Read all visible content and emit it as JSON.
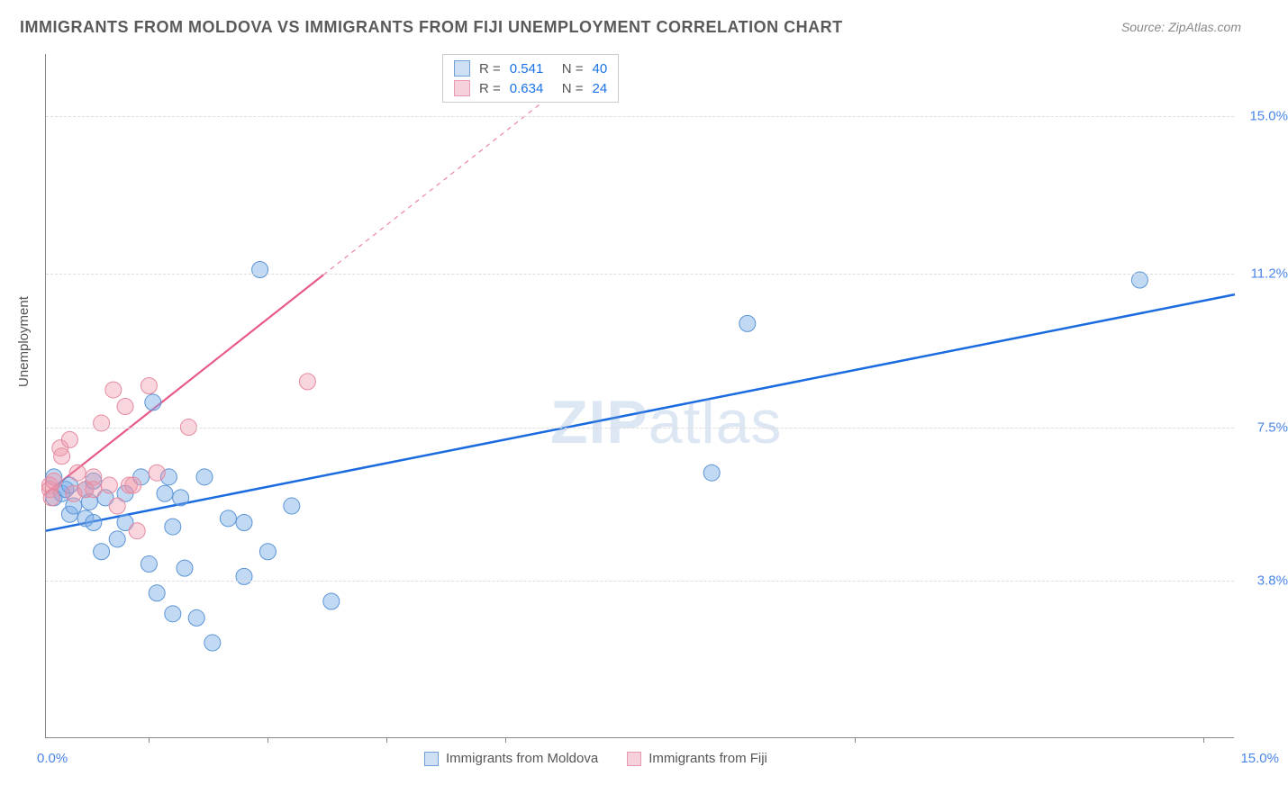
{
  "title": "IMMIGRANTS FROM MOLDOVA VS IMMIGRANTS FROM FIJI UNEMPLOYMENT CORRELATION CHART",
  "source": "Source: ZipAtlas.com",
  "y_axis_label": "Unemployment",
  "watermark_bold": "ZIP",
  "watermark_light": "atlas",
  "chart": {
    "type": "scatter",
    "background_color": "#ffffff",
    "grid_color": "#dddddd",
    "axis_color": "#888888",
    "xlim": [
      0,
      15
    ],
    "ylim": [
      0,
      16.5
    ],
    "x_min_label": "0.0%",
    "x_max_label": "15.0%",
    "y_ticks": [
      {
        "value": 3.8,
        "label": "3.8%"
      },
      {
        "value": 7.5,
        "label": "7.5%"
      },
      {
        "value": 11.2,
        "label": "11.2%"
      },
      {
        "value": 15.0,
        "label": "15.0%"
      }
    ],
    "x_tick_positions": [
      1.3,
      2.8,
      4.3,
      5.8,
      10.2,
      14.6
    ],
    "series": [
      {
        "name": "Immigrants from Moldova",
        "marker_fill": "rgba(120,170,230,0.45)",
        "marker_stroke": "#5a94d6",
        "marker_radius": 9,
        "line_color": "#1a6be0",
        "line_width": 2.5,
        "r": "0.541",
        "n": "40",
        "swatch_fill": "#cfe0f5",
        "swatch_border": "#6fa0d8",
        "trend": {
          "x1": 0,
          "y1": 5.0,
          "x2": 15,
          "y2": 10.7,
          "dash_from_x": null
        },
        "points": [
          [
            0.1,
            5.8
          ],
          [
            0.1,
            6.3
          ],
          [
            0.2,
            5.9
          ],
          [
            0.25,
            6.0
          ],
          [
            0.3,
            5.4
          ],
          [
            0.3,
            6.1
          ],
          [
            0.35,
            5.6
          ],
          [
            0.5,
            5.3
          ],
          [
            0.5,
            6.0
          ],
          [
            0.55,
            5.7
          ],
          [
            0.6,
            5.2
          ],
          [
            0.6,
            6.2
          ],
          [
            0.7,
            4.5
          ],
          [
            0.75,
            5.8
          ],
          [
            0.9,
            4.8
          ],
          [
            1.0,
            5.9
          ],
          [
            1.0,
            5.2
          ],
          [
            1.2,
            6.3
          ],
          [
            1.3,
            4.2
          ],
          [
            1.35,
            8.1
          ],
          [
            1.4,
            3.5
          ],
          [
            1.5,
            5.9
          ],
          [
            1.55,
            6.3
          ],
          [
            1.6,
            3.0
          ],
          [
            1.6,
            5.1
          ],
          [
            1.7,
            5.8
          ],
          [
            1.75,
            4.1
          ],
          [
            1.9,
            2.9
          ],
          [
            2.0,
            6.3
          ],
          [
            2.1,
            2.3
          ],
          [
            2.3,
            5.3
          ],
          [
            2.5,
            5.2
          ],
          [
            2.5,
            3.9
          ],
          [
            2.7,
            11.3
          ],
          [
            2.8,
            4.5
          ],
          [
            3.1,
            5.6
          ],
          [
            3.6,
            3.3
          ],
          [
            8.4,
            6.4
          ],
          [
            8.85,
            10.0
          ],
          [
            13.8,
            11.05
          ]
        ]
      },
      {
        "name": "Immigrants from Fiji",
        "marker_fill": "rgba(240,150,170,0.40)",
        "marker_stroke": "#e48aa0",
        "marker_radius": 9,
        "line_color": "#e75a8a",
        "line_width": 2.2,
        "r": "0.634",
        "n": "24",
        "swatch_fill": "#f6d0da",
        "swatch_border": "#e69ab0",
        "trend": {
          "x1": 0,
          "y1": 5.9,
          "x2": 15,
          "y2": 28.5,
          "dash_from_x": 3.5
        },
        "points": [
          [
            0.05,
            6.1
          ],
          [
            0.05,
            6.0
          ],
          [
            0.07,
            5.8
          ],
          [
            0.1,
            6.2
          ],
          [
            0.18,
            7.0
          ],
          [
            0.2,
            6.8
          ],
          [
            0.3,
            7.2
          ],
          [
            0.35,
            5.9
          ],
          [
            0.4,
            6.4
          ],
          [
            0.5,
            6.0
          ],
          [
            0.6,
            6.3
          ],
          [
            0.6,
            6.0
          ],
          [
            0.7,
            7.6
          ],
          [
            0.8,
            6.1
          ],
          [
            0.85,
            8.4
          ],
          [
            0.9,
            5.6
          ],
          [
            1.0,
            8.0
          ],
          [
            1.05,
            6.1
          ],
          [
            1.1,
            6.1
          ],
          [
            1.15,
            5.0
          ],
          [
            1.3,
            8.5
          ],
          [
            1.4,
            6.4
          ],
          [
            1.8,
            7.5
          ],
          [
            3.3,
            8.6
          ]
        ]
      }
    ],
    "legend_bottom": [
      {
        "label": "Immigrants from Moldova",
        "swatch_fill": "#cfe0f5",
        "swatch_border": "#6fa0d8"
      },
      {
        "label": "Immigrants from Fiji",
        "swatch_fill": "#f6d0da",
        "swatch_border": "#e69ab0"
      }
    ]
  }
}
